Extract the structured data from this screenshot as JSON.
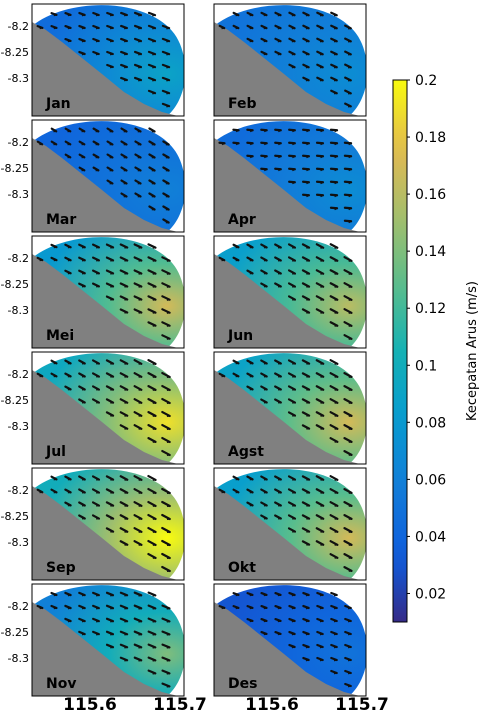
{
  "panels": [
    {
      "month": "Jan",
      "mean": 0.045,
      "hotspot": 0.09,
      "dir": 110
    },
    {
      "month": "Feb",
      "mean": 0.05,
      "hotspot": 0.07,
      "dir": 115
    },
    {
      "month": "Mar",
      "mean": 0.04,
      "hotspot": 0.06,
      "dir": 120
    },
    {
      "month": "Apr",
      "mean": 0.045,
      "hotspot": 0.07,
      "dir": 95
    },
    {
      "month": "Mei",
      "mean": 0.08,
      "hotspot": 0.17,
      "dir": 115
    },
    {
      "month": "Jun",
      "mean": 0.085,
      "hotspot": 0.16,
      "dir": 118
    },
    {
      "month": "Jul",
      "mean": 0.095,
      "hotspot": 0.19,
      "dir": 118
    },
    {
      "month": "Agst",
      "mean": 0.09,
      "hotspot": 0.17,
      "dir": 118
    },
    {
      "month": "Sep",
      "mean": 0.1,
      "hotspot": 0.2,
      "dir": 118
    },
    {
      "month": "Okt",
      "mean": 0.085,
      "hotspot": 0.17,
      "dir": 118
    },
    {
      "month": "Nov",
      "mean": 0.06,
      "hotspot": 0.14,
      "dir": 112
    },
    {
      "month": "Des",
      "mean": 0.03,
      "hotspot": 0.05,
      "dir": 110
    }
  ],
  "axes": {
    "yticks": [
      "-8.2",
      "-8.25",
      "-8.3"
    ],
    "xticks": [
      "115.6",
      "115.7"
    ]
  },
  "colorbar": {
    "label": "Kecepatan Arus (m/s)",
    "range": [
      0.01,
      0.2
    ],
    "ticks": [
      "0.2",
      "0.18",
      "0.16",
      "0.14",
      "0.12",
      "0.1",
      "0.08",
      "0.06",
      "0.04",
      "0.02"
    ],
    "colormap": "parula"
  },
  "colors": {
    "land": "#808080",
    "arrow": "#111111"
  }
}
